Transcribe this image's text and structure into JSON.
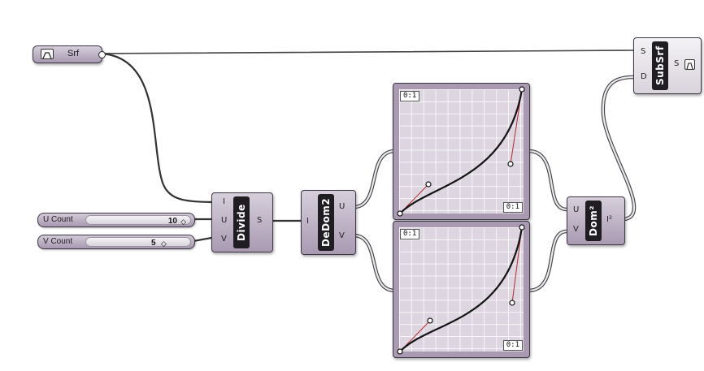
{
  "srf_param": {
    "label": "Srf",
    "icon": "surface-param-icon"
  },
  "sliders": [
    {
      "name": "U Count",
      "value": "10"
    },
    {
      "name": "V Count",
      "value": "5"
    }
  ],
  "divide": {
    "title": "Divide",
    "inputs": [
      "I",
      "U",
      "V"
    ],
    "output": "S"
  },
  "dedom": {
    "title": "DeDom2",
    "inputs": [
      "I"
    ],
    "outputs": [
      "U",
      "V"
    ]
  },
  "graph_top": {
    "domain_x": "0:1",
    "domain_y": "0:1"
  },
  "graph_bottom": {
    "domain_x": "0:1",
    "domain_y": "0:1"
  },
  "dom2": {
    "title": "Dom²",
    "inputs": [
      "U",
      "V"
    ],
    "output": "I²"
  },
  "subsrf": {
    "title": "SubSrf",
    "inputs": [
      "S",
      "D"
    ],
    "output": "S"
  },
  "colors": {
    "component": "#a99ab2",
    "wire": "#333333",
    "label_bg": "#1f1c22"
  }
}
